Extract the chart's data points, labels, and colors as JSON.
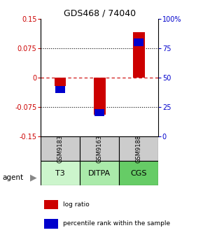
{
  "title": "GDS468 / 74040",
  "samples": [
    "GSM9183",
    "GSM9163",
    "GSM9188"
  ],
  "agents": [
    "T3",
    "DITPA",
    "CGS"
  ],
  "log_ratios": [
    -0.022,
    -0.095,
    0.115
  ],
  "percentile_ranks": [
    40,
    20,
    80
  ],
  "ylim": [
    -0.15,
    0.15
  ],
  "yticks_left": [
    0.15,
    0.075,
    0,
    -0.075,
    -0.15
  ],
  "yticks_right": [
    100,
    75,
    50,
    25,
    0
  ],
  "bar_color_log": "#cc0000",
  "bar_color_pct": "#0000cc",
  "bar_width": 0.3,
  "pct_square_size": 0.018,
  "sample_box_color": "#cccccc",
  "agent_colors": [
    "#ccf5cc",
    "#aaeaaa",
    "#66cc66"
  ],
  "legend_log": "log ratio",
  "legend_pct": "percentile rank within the sample",
  "zero_line_color": "#cc0000",
  "dotted_line_color": "#000000"
}
